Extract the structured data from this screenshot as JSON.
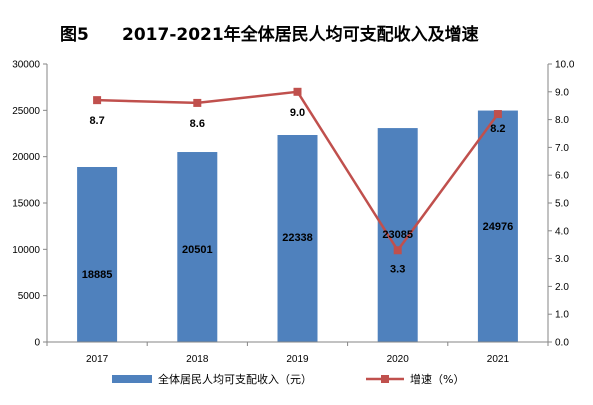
{
  "title": {
    "fig_no": "图5",
    "text": "2017-2021年全体居民人均可支配收入及增速"
  },
  "colors": {
    "bar": "#4F81BD",
    "line": "#C0504D",
    "axis": "#868686"
  },
  "chart_data": {
    "type": "bar+line",
    "categories": [
      "2017",
      "2018",
      "2019",
      "2020",
      "2021"
    ],
    "series": [
      {
        "name": "全体居民人均可支配收入（元）",
        "type": "bar",
        "axis": "left",
        "values": [
          18885,
          20501,
          22338,
          23085,
          24976
        ],
        "labels": [
          "18885",
          "20501",
          "22338",
          "23085",
          "24976"
        ]
      },
      {
        "name": "增速（%）",
        "type": "line",
        "axis": "right",
        "values": [
          8.7,
          8.6,
          9.0,
          3.3,
          8.2
        ],
        "labels": [
          "8.7",
          "8.6",
          "9.0",
          "3.3",
          "8.2"
        ]
      }
    ],
    "y_left": {
      "ylim": [
        0,
        30000
      ],
      "ticks": [
        "0",
        "5000",
        "10000",
        "15000",
        "20000",
        "25000",
        "30000"
      ]
    },
    "y_right": {
      "ylim": [
        0,
        10
      ],
      "ticks": [
        "0.0",
        "1.0",
        "2.0",
        "3.0",
        "4.0",
        "5.0",
        "6.0",
        "7.0",
        "8.0",
        "9.0",
        "10.0"
      ]
    },
    "grid": false,
    "legend_position": "bottom"
  }
}
